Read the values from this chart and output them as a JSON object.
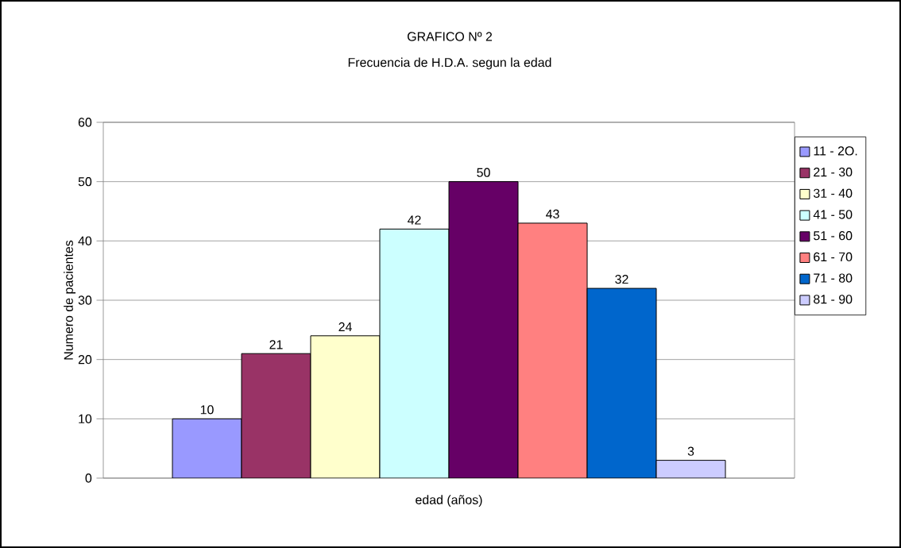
{
  "chart_data": {
    "type": "bar",
    "title": "GRAFICO Nº 2",
    "subtitle": "Frecuencia de H.D.A. segun la edad",
    "xlabel": "edad (años)",
    "ylabel": "Numero de pacientes",
    "categories": [
      null
    ],
    "series": [
      {
        "name": "11 - 2O.",
        "color": "#9999ff",
        "values": [
          10
        ]
      },
      {
        "name": "21 - 30",
        "color": "#993366",
        "values": [
          21
        ]
      },
      {
        "name": "31 - 40",
        "color": "#ffffcc",
        "values": [
          24
        ]
      },
      {
        "name": "41 - 50",
        "color": "#ccffff",
        "values": [
          42
        ]
      },
      {
        "name": "51 - 60",
        "color": "#660066",
        "values": [
          50
        ]
      },
      {
        "name": "61 - 70",
        "color": "#ff8080",
        "values": [
          43
        ]
      },
      {
        "name": "71 - 80",
        "color": "#0066cc",
        "values": [
          32
        ]
      },
      {
        "name": "81 - 90",
        "color": "#ccccff",
        "values": [
          3
        ]
      }
    ],
    "ylim": [
      0,
      60
    ],
    "yticks": [
      0,
      10,
      20,
      30,
      40,
      50,
      60
    ],
    "grid": "y",
    "legend": "right",
    "data_labels": true
  }
}
